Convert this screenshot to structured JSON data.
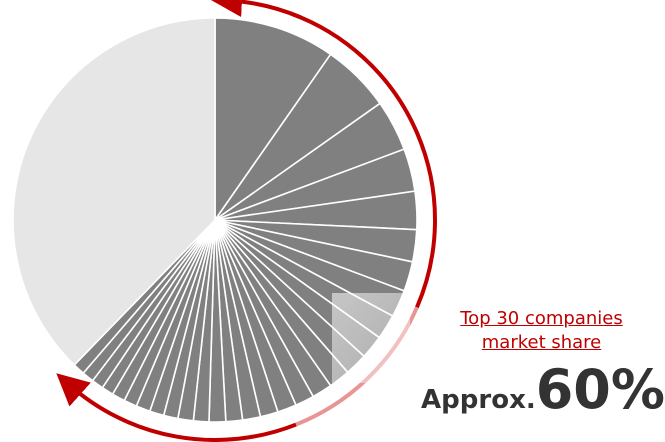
{
  "chart_data": {
    "type": "pie",
    "slice_values": [
      10.2,
      5.8,
      4.3,
      3.6,
      3.2,
      2.7,
      2.5,
      2.3,
      2.1,
      2.0,
      1.9,
      1.8,
      1.7,
      1.6,
      1.6,
      1.5,
      1.5,
      1.4,
      1.4,
      1.3,
      1.3,
      1.2,
      1.2,
      1.2,
      1.1,
      1.1,
      1.0,
      1.0,
      1.0,
      1.0,
      39.7
    ],
    "series": [
      {
        "name": "",
        "values_count": 30
      },
      {
        "name": "",
        "values_count": 1
      }
    ]
  },
  "annotation": {
    "label_line1": "Top 30 companies",
    "label_line2": "market share",
    "prefix": "Approx.",
    "value": "60%"
  },
  "colors": {
    "top_slice": "#808080",
    "rest_slice": "#e6e6e6",
    "slice_border": "#ffffff",
    "arrow": "#c00000",
    "arrow_faded": "#e89595",
    "text": "#333333"
  }
}
